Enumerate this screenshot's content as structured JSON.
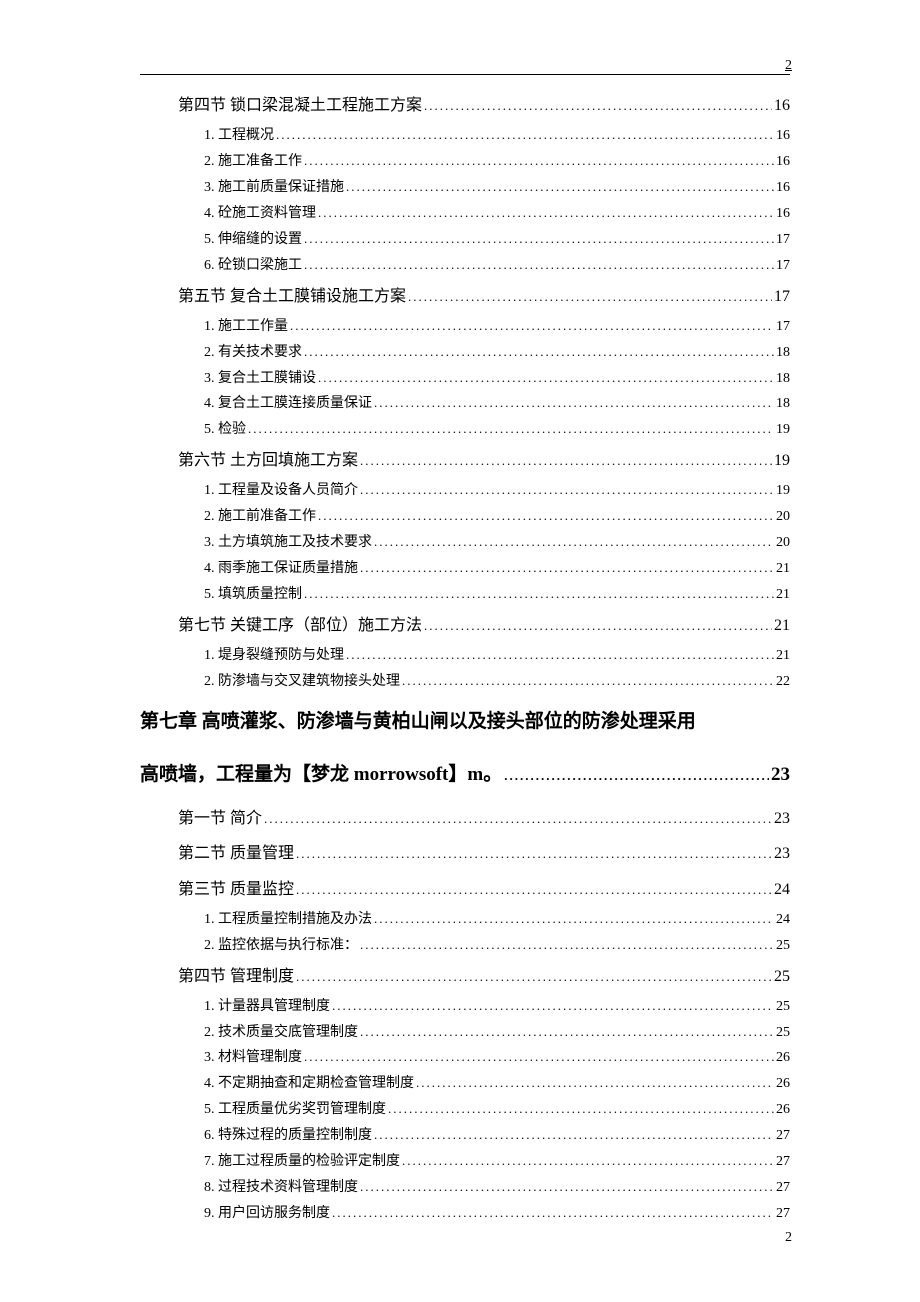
{
  "page_number_top": "2",
  "page_number_bottom": "2",
  "toc": [
    {
      "level": "section",
      "title": "第四节  锁口梁混凝土工程施工方案",
      "page": "16"
    },
    {
      "level": "sub",
      "title": "1.  工程概况",
      "page": "16"
    },
    {
      "level": "sub",
      "title": "2.  施工准备工作",
      "page": "16"
    },
    {
      "level": "sub",
      "title": "3.  施工前质量保证措施",
      "page": "16"
    },
    {
      "level": "sub",
      "title": "4.  砼施工资料管理",
      "page": "16"
    },
    {
      "level": "sub",
      "title": "5.  伸缩缝的设置",
      "page": "17"
    },
    {
      "level": "sub",
      "title": "6.  砼锁口梁施工",
      "page": "17"
    },
    {
      "level": "section",
      "title": "第五节  复合土工膜铺设施工方案",
      "page": "17"
    },
    {
      "level": "sub",
      "title": "1.  施工工作量",
      "page": "17"
    },
    {
      "level": "sub",
      "title": "2.  有关技术要求",
      "page": "18"
    },
    {
      "level": "sub",
      "title": "3.  复合土工膜铺设",
      "page": "18"
    },
    {
      "level": "sub",
      "title": "4.  复合土工膜连接质量保证",
      "page": "18"
    },
    {
      "level": "sub",
      "title": "5.  检验",
      "page": "19"
    },
    {
      "level": "section",
      "title": "第六节  土方回填施工方案",
      "page": "19"
    },
    {
      "level": "sub",
      "title": "1.  工程量及设备人员简介",
      "page": "19"
    },
    {
      "level": "sub",
      "title": "2.  施工前准备工作",
      "page": "20"
    },
    {
      "level": "sub",
      "title": "3.  土方填筑施工及技术要求",
      "page": "20"
    },
    {
      "level": "sub",
      "title": "4.  雨季施工保证质量措施",
      "page": "21"
    },
    {
      "level": "sub",
      "title": "5.  填筑质量控制",
      "page": "21"
    },
    {
      "level": "section",
      "title": "第七节  关键工序（部位）施工方法",
      "page": "21"
    },
    {
      "level": "sub",
      "title": "1.  堤身裂缝预防与处理",
      "page": "21"
    },
    {
      "level": "sub",
      "title": "2.  防渗墙与交叉建筑物接头处理",
      "page": "22"
    }
  ],
  "chapter": {
    "line1": "第七章  高喷灌浆、防渗墙与黄柏山闸以及接头部位的防渗处理采用",
    "line2_title": "高喷墙，工程量为【梦龙 morrowsoft】m。",
    "line2_page": "23"
  },
  "toc2": [
    {
      "level": "section",
      "title": "第一节  简介",
      "page": "23"
    },
    {
      "level": "section",
      "title": "第二节  质量管理",
      "page": "23"
    },
    {
      "level": "section",
      "title": "第三节  质量监控",
      "page": "24"
    },
    {
      "level": "sub",
      "title": "1.  工程质量控制措施及办法",
      "page": "24"
    },
    {
      "level": "sub",
      "title": "2.  监控依据与执行标准：",
      "page": "25"
    },
    {
      "level": "section",
      "title": "第四节  管理制度",
      "page": "25"
    },
    {
      "level": "sub",
      "title": "1.  计量器具管理制度",
      "page": "25"
    },
    {
      "level": "sub",
      "title": "2.  技术质量交底管理制度",
      "page": "25"
    },
    {
      "level": "sub",
      "title": "3.  材料管理制度",
      "page": "26"
    },
    {
      "level": "sub",
      "title": "4.  不定期抽查和定期检查管理制度",
      "page": "26"
    },
    {
      "level": "sub",
      "title": "5.  工程质量优劣奖罚管理制度",
      "page": "26"
    },
    {
      "level": "sub",
      "title": "6.  特殊过程的质量控制制度",
      "page": "27"
    },
    {
      "level": "sub",
      "title": "7.  施工过程质量的检验评定制度",
      "page": "27"
    },
    {
      "level": "sub",
      "title": "8.  过程技术资料管理制度",
      "page": "27"
    },
    {
      "level": "sub",
      "title": "9.  用户回访服务制度",
      "page": "27"
    }
  ]
}
